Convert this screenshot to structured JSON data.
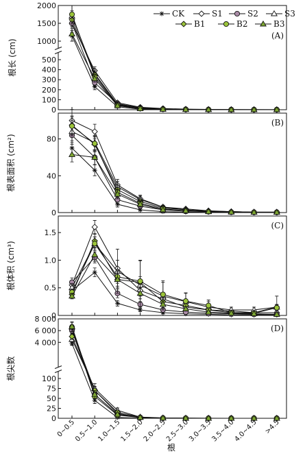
{
  "figure": {
    "xlabel": "根",
    "categories": [
      "0~0.5",
      "0.5~1.0",
      "1.0~1.5",
      "1.5~2.0",
      "2.0~2.5",
      "2.5~3.0",
      "3.0~3.5",
      "3.5~4.0",
      "4.0~4.5",
      ">4.5"
    ]
  },
  "legend": [
    {
      "label": "CK",
      "marker": "star"
    },
    {
      "label": "S1",
      "marker": "diamond_open"
    },
    {
      "label": "S2",
      "marker": "circle_purple"
    },
    {
      "label": "S3",
      "marker": "triangle_open"
    },
    {
      "label": "B1",
      "marker": "diamond_green"
    },
    {
      "label": "B2",
      "marker": "circle_green"
    },
    {
      "label": "B3",
      "marker": "triangle_green"
    }
  ],
  "colors": {
    "line": "#111111",
    "s2_fill": "#a98ba6",
    "green_fill": "#9bc43a",
    "green_dark_fill": "#7ea832"
  },
  "chart_data": [
    {
      "panel": "A",
      "type": "line",
      "ylabel": "根长 (cm)",
      "y_broken": true,
      "ylim_lower": [
        0,
        500
      ],
      "ylim_upper": [
        1000,
        2000
      ],
      "yticks_lower": [
        0,
        100,
        200,
        300,
        400,
        500
      ],
      "yticks_upper": [
        1000,
        1500,
        2000
      ],
      "series": [
        {
          "name": "CK",
          "values": [
            1150,
            230,
            30,
            5,
            2,
            1,
            0,
            0,
            0,
            0
          ],
          "err": [
            150,
            30,
            10,
            3,
            1,
            1,
            0,
            0,
            0,
            0
          ]
        },
        {
          "name": "S1",
          "values": [
            1500,
            390,
            70,
            25,
            12,
            6,
            3,
            2,
            1,
            1
          ],
          "err": [
            250,
            40,
            15,
            6,
            3,
            2,
            1,
            1,
            1,
            1
          ]
        },
        {
          "name": "S2",
          "values": [
            1500,
            270,
            60,
            20,
            8,
            4,
            2,
            1,
            1,
            1
          ],
          "err": [
            200,
            35,
            15,
            5,
            2,
            2,
            1,
            1,
            1,
            1
          ]
        },
        {
          "name": "S3",
          "values": [
            1700,
            360,
            55,
            18,
            7,
            3,
            2,
            1,
            1,
            0
          ],
          "err": [
            300,
            45,
            15,
            5,
            2,
            1,
            1,
            1,
            0,
            0
          ]
        },
        {
          "name": "B1",
          "values": [
            1600,
            350,
            50,
            15,
            6,
            3,
            1,
            1,
            0,
            0
          ],
          "err": [
            250,
            40,
            12,
            4,
            2,
            1,
            1,
            0,
            0,
            0
          ]
        },
        {
          "name": "B2",
          "values": [
            1750,
            330,
            45,
            12,
            5,
            2,
            1,
            0,
            0,
            0
          ],
          "err": [
            250,
            40,
            12,
            4,
            2,
            1,
            1,
            0,
            0,
            0
          ]
        },
        {
          "name": "B3",
          "values": [
            1200,
            310,
            40,
            10,
            4,
            2,
            1,
            0,
            0,
            0
          ],
          "err": [
            200,
            35,
            10,
            3,
            1,
            1,
            0,
            0,
            0,
            0
          ]
        }
      ]
    },
    {
      "panel": "B",
      "type": "line",
      "ylabel": "根表面积 (cm²)",
      "ylim": [
        0,
        108
      ],
      "yticks": [
        0,
        40,
        80
      ],
      "series": [
        {
          "name": "CK",
          "values": [
            70,
            46,
            9,
            3,
            1,
            0.5,
            0.3,
            0.2,
            0.1,
            0.1
          ],
          "err": [
            8,
            6,
            3,
            1,
            0.5,
            0.3,
            0.2,
            0.1,
            0.1,
            0.1
          ]
        },
        {
          "name": "S1",
          "values": [
            100,
            88,
            30,
            15,
            6,
            4,
            2,
            1,
            0.5,
            0.5
          ],
          "err": [
            12,
            8,
            6,
            4,
            2,
            1,
            1,
            0.5,
            0.3,
            0.3
          ]
        },
        {
          "name": "S2",
          "values": [
            84,
            60,
            14,
            7,
            3,
            1.5,
            1,
            0.5,
            0.3,
            0.3
          ],
          "err": [
            10,
            8,
            4,
            2,
            1,
            1,
            0.5,
            0.3,
            0.2,
            0.2
          ]
        },
        {
          "name": "S3",
          "values": [
            88,
            76,
            28,
            14,
            6,
            3,
            1.5,
            1,
            0.5,
            0.5
          ],
          "err": [
            12,
            8,
            6,
            4,
            2,
            1,
            1,
            0.5,
            0.3,
            0.3
          ]
        },
        {
          "name": "B1",
          "values": [
            95,
            74,
            25,
            12,
            5,
            3,
            1.5,
            1,
            0.5,
            0.5
          ],
          "err": [
            10,
            8,
            5,
            3,
            2,
            1,
            1,
            0.5,
            0.3,
            0.3
          ]
        },
        {
          "name": "B2",
          "values": [
            94,
            75,
            22,
            10,
            4,
            2,
            1,
            0.5,
            0.3,
            0.3
          ],
          "err": [
            10,
            8,
            5,
            3,
            2,
            1,
            1,
            0.5,
            0.3,
            0.3
          ]
        },
        {
          "name": "B3",
          "values": [
            63,
            60,
            20,
            9,
            3,
            2,
            1,
            0.5,
            0.3,
            0.3
          ],
          "err": [
            8,
            8,
            5,
            3,
            1,
            1,
            0.5,
            0.3,
            0.2,
            0.2
          ]
        }
      ]
    },
    {
      "panel": "C",
      "type": "line",
      "ylabel": "根体积 (cm³)",
      "ylim": [
        0,
        1.8
      ],
      "yticks": [
        0,
        0.5,
        1.0,
        1.5
      ],
      "yticklabels": [
        "0",
        "0.5",
        "1.0",
        "1.5"
      ],
      "series": [
        {
          "name": "CK",
          "values": [
            0.45,
            0.78,
            0.22,
            0.1,
            0.05,
            0.03,
            0.02,
            0.01,
            0.01,
            0.01
          ],
          "err": [
            0.05,
            0.08,
            0.05,
            0.03,
            0.02,
            0.01,
            0.01,
            0.01,
            0.01,
            0.01
          ]
        },
        {
          "name": "S1",
          "values": [
            0.55,
            1.6,
            0.85,
            0.45,
            0.3,
            0.15,
            0.1,
            0.08,
            0.05,
            0.05
          ],
          "err": [
            0.08,
            0.12,
            0.15,
            0.1,
            0.08,
            0.05,
            0.03,
            0.03,
            0.02,
            0.02
          ]
        },
        {
          "name": "S2",
          "values": [
            0.6,
            1.05,
            0.4,
            0.2,
            0.1,
            0.06,
            0.04,
            0.03,
            0.02,
            0.02
          ],
          "err": [
            0.08,
            0.1,
            0.08,
            0.05,
            0.03,
            0.02,
            0.02,
            0.01,
            0.01,
            0.01
          ]
        },
        {
          "name": "S3",
          "values": [
            0.5,
            1.3,
            0.8,
            0.55,
            0.35,
            0.25,
            0.15,
            0.1,
            0.1,
            0.15
          ],
          "err": [
            0.08,
            0.12,
            0.4,
            0.45,
            0.25,
            0.15,
            0.1,
            0.05,
            0.05,
            0.2
          ]
        },
        {
          "name": "B1",
          "values": [
            0.38,
            1.35,
            0.65,
            0.6,
            0.25,
            0.18,
            0.1,
            0.05,
            0.05,
            0.15
          ],
          "err": [
            0.05,
            0.12,
            0.12,
            0.1,
            0.08,
            0.05,
            0.03,
            0.02,
            0.02,
            0.05
          ]
        },
        {
          "name": "B2",
          "values": [
            0.42,
            1.3,
            0.7,
            0.62,
            0.38,
            0.26,
            0.18,
            0.05,
            0.04,
            0.14
          ],
          "err": [
            0.06,
            0.12,
            0.12,
            0.37,
            0.25,
            0.15,
            0.1,
            0.02,
            0.02,
            0.05
          ]
        },
        {
          "name": "B3",
          "values": [
            0.35,
            1.1,
            0.65,
            0.4,
            0.2,
            0.12,
            0.06,
            0.04,
            0.03,
            0.02
          ],
          "err": [
            0.05,
            0.12,
            0.15,
            0.1,
            0.06,
            0.04,
            0.02,
            0.02,
            0.01,
            0.01
          ]
        }
      ]
    },
    {
      "panel": "D",
      "type": "line",
      "ylabel": "根尖数",
      "y_broken": true,
      "ylim_lower": [
        0,
        100
      ],
      "ylim_upper": [
        1000,
        8000
      ],
      "yticks_lower": [
        0,
        25,
        50,
        75,
        100
      ],
      "yticks_upper": [
        4000,
        6000,
        8000
      ],
      "yticklabels_upper": [
        "4 000",
        "6 000",
        "8 000"
      ],
      "series": [
        {
          "name": "CK",
          "values": [
            3800,
            45,
            2,
            0.5,
            0.2,
            0.1,
            0.1,
            0.1,
            0.1,
            0.1
          ],
          "err": [
            300,
            8,
            1,
            0.3,
            0.1,
            0.1,
            0.1,
            0.1,
            0.1,
            0.1
          ]
        },
        {
          "name": "S1",
          "values": [
            6200,
            70,
            12,
            2,
            0.5,
            0.2,
            0.1,
            0.1,
            0.1,
            0.1
          ],
          "err": [
            800,
            10,
            4,
            1,
            0.3,
            0.1,
            0.1,
            0.1,
            0.1,
            0.1
          ]
        },
        {
          "name": "S2",
          "values": [
            6000,
            60,
            10,
            2,
            0.5,
            0.2,
            0.1,
            0.1,
            0.1,
            0.1
          ],
          "err": [
            700,
            10,
            4,
            1,
            0.3,
            0.1,
            0.1,
            0.1,
            0.1,
            0.1
          ]
        },
        {
          "name": "S3",
          "values": [
            4500,
            75,
            20,
            3,
            1,
            0.3,
            0.2,
            0.1,
            0.1,
            0.1
          ],
          "err": [
            500,
            12,
            6,
            1,
            0.3,
            0.1,
            0.1,
            0.1,
            0.1,
            0.1
          ]
        },
        {
          "name": "B1",
          "values": [
            5000,
            70,
            15,
            3,
            0.5,
            0.2,
            0.1,
            0.1,
            0.1,
            0.1
          ],
          "err": [
            500,
            10,
            5,
            1,
            0.3,
            0.1,
            0.1,
            0.1,
            0.1,
            0.1
          ]
        },
        {
          "name": "B2",
          "values": [
            6600,
            55,
            8,
            2,
            0.5,
            0.2,
            0.1,
            0.1,
            0.1,
            0.1
          ],
          "err": [
            800,
            10,
            3,
            1,
            0.3,
            0.1,
            0.1,
            0.1,
            0.1,
            0.1
          ]
        },
        {
          "name": "B3",
          "values": [
            6700,
            60,
            10,
            2,
            0.5,
            0.2,
            0.1,
            0.1,
            0.1,
            0.1
          ],
          "err": [
            800,
            10,
            4,
            1,
            0.3,
            0.1,
            0.1,
            0.1,
            0.1,
            0.1
          ]
        }
      ]
    }
  ]
}
